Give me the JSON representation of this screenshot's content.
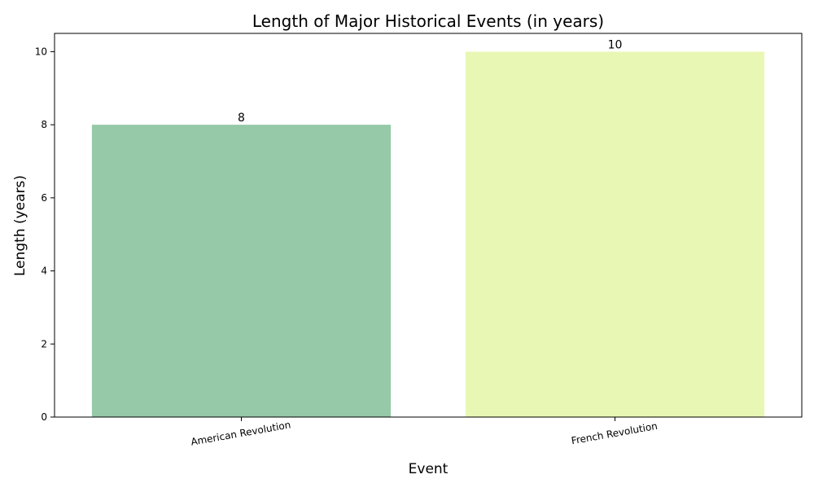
{
  "chart_data": {
    "type": "bar",
    "title": "Length of Major Historical Events (in years)",
    "xlabel": "Event",
    "ylabel": "Length (years)",
    "categories": [
      "American Revolution",
      "French Revolution"
    ],
    "values": [
      8,
      10
    ],
    "colors": [
      "#95c9a7",
      "#e8f8b4"
    ],
    "ylim": [
      0,
      10.5
    ],
    "yticks": [
      0,
      2,
      4,
      6,
      8,
      10
    ],
    "data_labels": [
      "8",
      "10"
    ],
    "xtick_rotation_deg": -10,
    "grid": false,
    "legend": "none"
  }
}
